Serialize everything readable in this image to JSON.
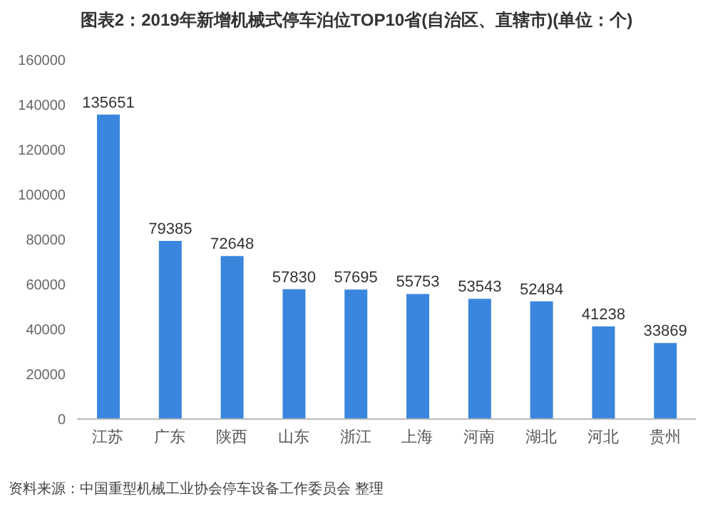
{
  "chart_data": {
    "type": "bar",
    "title": "图表2：2019年新增机械式停车泊位TOP10省(自治区、直辖市)(单位：个)",
    "categories": [
      "江苏",
      "广东",
      "陕西",
      "山东",
      "浙江",
      "上海",
      "河南",
      "湖北",
      "河北",
      "贵州"
    ],
    "values": [
      135651,
      79385,
      72648,
      57830,
      57695,
      55753,
      53543,
      52484,
      41238,
      33869
    ],
    "color": "#3a86de",
    "data_labels": true,
    "ylim": [
      0,
      160000
    ],
    "yticks": [
      0,
      20000,
      40000,
      60000,
      80000,
      100000,
      120000,
      140000,
      160000
    ],
    "annotations": [
      "资料来源：中国重型机械工业协会停车设备工作委员会 整理"
    ]
  }
}
